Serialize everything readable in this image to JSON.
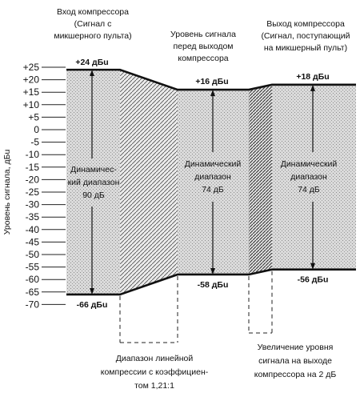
{
  "headers": {
    "input": [
      "Вход компрессора",
      "(Сигнал с",
      "микшерного пульта)"
    ],
    "middle": [
      "Уровень сигнала",
      "перед выходом",
      "компрессора"
    ],
    "output": [
      "Выход компрессора",
      "(Сигнал, поступающий",
      "на микшерный пульт)"
    ]
  },
  "y_axis": {
    "label": "Уровень сигнала, дБu",
    "ticks": [
      "+25",
      "+20",
      "+15",
      "+10",
      "+5",
      "0",
      "-5",
      "-10",
      "-15",
      "-20",
      "-25",
      "-30",
      "-35",
      "-40",
      "-45",
      "-50",
      "-55",
      "-60",
      "-65",
      "-70"
    ],
    "tick_values": [
      25,
      20,
      15,
      10,
      5,
      0,
      -5,
      -10,
      -15,
      -20,
      -25,
      -30,
      -35,
      -40,
      -45,
      -50,
      -55,
      -60,
      -65,
      -70
    ]
  },
  "levels": {
    "input_top": {
      "value": 24,
      "label": "+24 дБu"
    },
    "input_bottom": {
      "value": -66,
      "label": "-66 дБu"
    },
    "middle_top": {
      "value": 16,
      "label": "+16 дБu"
    },
    "middle_bottom": {
      "value": -58,
      "label": "-58 дБu"
    },
    "output_top": {
      "value": 18,
      "label": "+18 дБu"
    },
    "output_bottom": {
      "value": -56,
      "label": "-56 дБu"
    }
  },
  "dynamic_range": {
    "input": [
      "Динамичес-",
      "кий диапазон",
      "90 дБ"
    ],
    "middle": [
      "Динамический",
      "диапазон",
      "74 дБ"
    ],
    "output": [
      "Динамический",
      "диапазон",
      "74 дБ"
    ]
  },
  "notes": {
    "compression": [
      "Диапазон линейной",
      "компрессии с коэффициен-",
      "том 1,21:1"
    ],
    "gain": [
      "Увеличение уровня",
      "сигнала на выходе",
      "компрессора на 2 дБ"
    ]
  }
}
